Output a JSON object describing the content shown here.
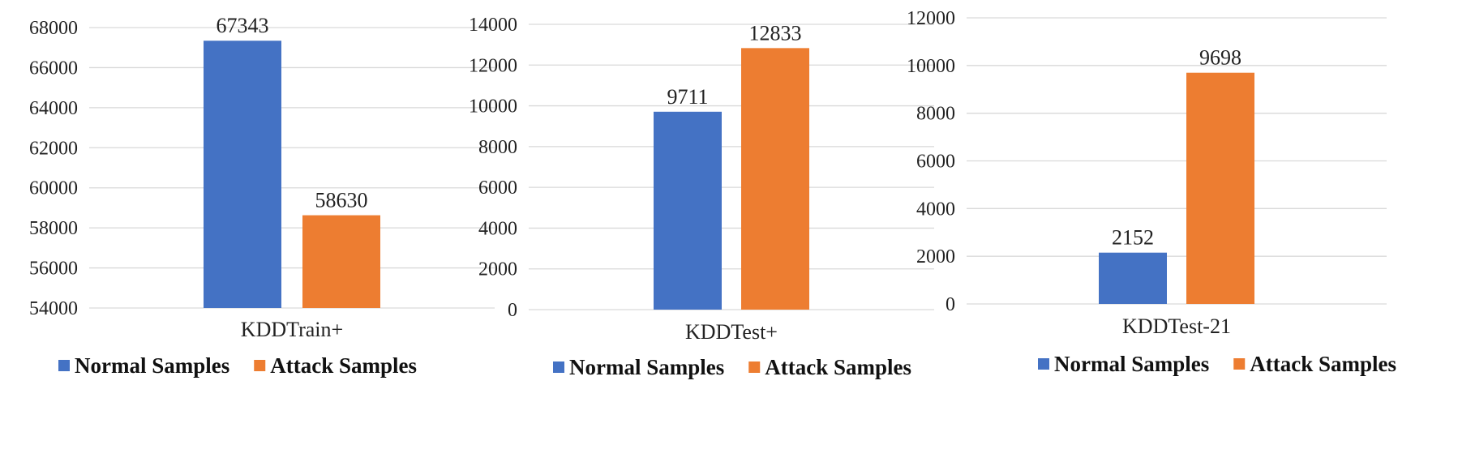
{
  "chart_data": [
    {
      "type": "bar",
      "categories": [
        "KDDTrain+"
      ],
      "series": [
        {
          "name": "Normal Samples",
          "values": [
            67343
          ]
        },
        {
          "name": "Attack Samples",
          "values": [
            58630
          ]
        }
      ],
      "ylim": [
        54000,
        68000
      ],
      "yticks": [
        "54000",
        "56000",
        "58000",
        "60000",
        "62000",
        "64000",
        "66000",
        "68000"
      ],
      "grid": true,
      "legend": "bottom"
    },
    {
      "type": "bar",
      "categories": [
        "KDDTest+"
      ],
      "series": [
        {
          "name": "Normal Samples",
          "values": [
            9711
          ]
        },
        {
          "name": "Attack Samples",
          "values": [
            12833
          ]
        }
      ],
      "ylim": [
        0,
        14000
      ],
      "yticks": [
        "0",
        "2000",
        "4000",
        "6000",
        "8000",
        "10000",
        "12000",
        "14000"
      ],
      "grid": true,
      "legend": "bottom"
    },
    {
      "type": "bar",
      "categories": [
        "KDDTest-21"
      ],
      "series": [
        {
          "name": "Normal Samples",
          "values": [
            2152
          ]
        },
        {
          "name": "Attack Samples",
          "values": [
            9698
          ]
        }
      ],
      "ylim": [
        0,
        12000
      ],
      "yticks": [
        "0",
        "2000",
        "4000",
        "6000",
        "8000",
        "10000",
        "12000"
      ],
      "grid": true,
      "legend": "bottom"
    }
  ],
  "colors": {
    "normal": "#4472C4",
    "attack": "#ED7D31",
    "grid": "#D9D9D9"
  }
}
